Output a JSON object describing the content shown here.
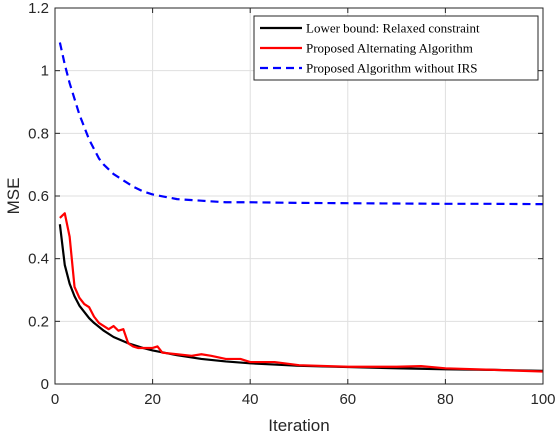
{
  "chart_data": {
    "type": "line",
    "title": "",
    "xlabel": "Iteration",
    "ylabel": "MSE",
    "xlim": [
      0,
      100
    ],
    "ylim": [
      0,
      1.2
    ],
    "xticks": [
      0,
      20,
      40,
      60,
      80,
      100
    ],
    "xtick_labels": [
      "0",
      "20",
      "40",
      "60",
      "80",
      "100"
    ],
    "yticks": [
      0,
      0.2,
      0.4,
      0.6,
      0.8,
      1,
      1.2
    ],
    "ytick_labels": [
      "0",
      "0.2",
      "0.4",
      "0.6",
      "0.8",
      "1",
      "1.2"
    ],
    "grid": true,
    "legend_position": "top-right",
    "series": [
      {
        "name": "Lower bound: Relaxed constraint",
        "color": "#000000",
        "style": "solid",
        "x": [
          1,
          2,
          3,
          4,
          5,
          6,
          7,
          8,
          10,
          12,
          15,
          18,
          20,
          25,
          30,
          35,
          40,
          45,
          50,
          60,
          70,
          80,
          90,
          100
        ],
        "y": [
          0.51,
          0.38,
          0.32,
          0.28,
          0.25,
          0.23,
          0.21,
          0.195,
          0.17,
          0.15,
          0.13,
          0.115,
          0.107,
          0.092,
          0.08,
          0.072,
          0.066,
          0.062,
          0.058,
          0.054,
          0.05,
          0.047,
          0.045,
          0.042
        ]
      },
      {
        "name": "Proposed Alternating Algorithm",
        "color": "#ff0000",
        "style": "solid",
        "x": [
          1,
          2,
          3,
          4,
          5,
          6,
          7,
          8,
          9,
          10,
          11,
          12,
          13,
          14,
          15,
          16,
          17,
          18,
          19,
          20,
          21,
          22,
          25,
          28,
          30,
          32,
          35,
          38,
          40,
          45,
          50,
          60,
          70,
          75,
          80,
          90,
          100
        ],
        "y": [
          0.53,
          0.545,
          0.47,
          0.31,
          0.275,
          0.255,
          0.245,
          0.215,
          0.195,
          0.185,
          0.175,
          0.185,
          0.17,
          0.175,
          0.13,
          0.12,
          0.115,
          0.115,
          0.115,
          0.115,
          0.12,
          0.1,
          0.095,
          0.09,
          0.095,
          0.09,
          0.08,
          0.08,
          0.07,
          0.07,
          0.06,
          0.055,
          0.055,
          0.057,
          0.05,
          0.045,
          0.04
        ]
      },
      {
        "name": "Proposed Algorithm without IRS",
        "color": "#0000ff",
        "style": "dashed",
        "x": [
          1,
          2,
          3,
          4,
          5,
          6,
          7,
          8,
          9,
          10,
          12,
          14,
          16,
          18,
          20,
          25,
          30,
          35,
          40,
          50,
          60,
          70,
          80,
          90,
          100
        ],
        "y": [
          1.09,
          1.02,
          0.96,
          0.91,
          0.86,
          0.82,
          0.78,
          0.75,
          0.72,
          0.7,
          0.67,
          0.65,
          0.63,
          0.615,
          0.605,
          0.59,
          0.585,
          0.58,
          0.58,
          0.578,
          0.577,
          0.576,
          0.575,
          0.575,
          0.574
        ]
      }
    ]
  }
}
